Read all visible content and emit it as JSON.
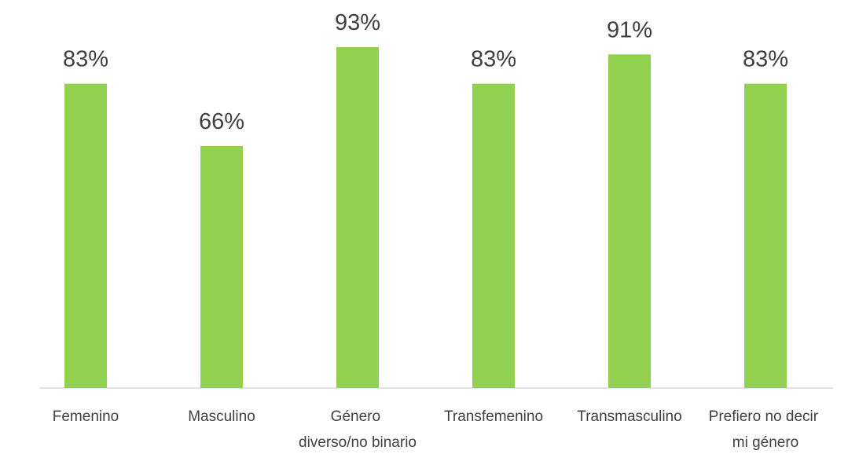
{
  "chart_data": {
    "type": "bar",
    "categories": [
      "Femenino",
      "Masculino",
      "Género diverso/no binario",
      "Transfemenino",
      "Transmasculino",
      "Prefiero no decir mi género"
    ],
    "values": [
      83,
      66,
      93,
      83,
      91,
      83
    ],
    "value_labels": [
      "83%",
      "66%",
      "93%",
      "83%",
      "91%",
      "83%"
    ],
    "color": "#92d050"
  }
}
